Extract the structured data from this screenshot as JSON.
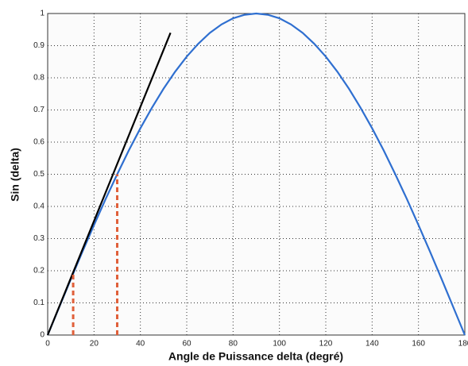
{
  "chart_data": {
    "type": "line",
    "xlabel": "Angle de Puissance delta (degré)",
    "ylabel": "Sin (delta)",
    "xlim": [
      0,
      180
    ],
    "xticks": [
      0,
      20,
      40,
      60,
      80,
      100,
      120,
      140,
      160,
      180
    ],
    "ylim": [
      0,
      1
    ],
    "yticks": [
      0,
      0.1,
      0.2,
      0.3,
      0.4,
      0.5,
      0.6,
      0.7,
      0.8,
      0.9,
      1
    ],
    "grid": true,
    "series": [
      {
        "color": "#2f6fd0",
        "style": "solid",
        "x": [
          0,
          5,
          10,
          15,
          20,
          25,
          30,
          35,
          40,
          45,
          50,
          55,
          60,
          65,
          70,
          75,
          80,
          85,
          90,
          95,
          100,
          105,
          110,
          115,
          120,
          125,
          130,
          135,
          140,
          145,
          150,
          155,
          160,
          165,
          170,
          175,
          180
        ],
        "values": [
          0,
          0.087,
          0.174,
          0.259,
          0.342,
          0.423,
          0.5,
          0.574,
          0.643,
          0.707,
          0.766,
          0.819,
          0.866,
          0.906,
          0.94,
          0.966,
          0.985,
          0.996,
          1,
          0.996,
          0.985,
          0.966,
          0.94,
          0.906,
          0.866,
          0.819,
          0.766,
          0.707,
          0.643,
          0.574,
          0.5,
          0.423,
          0.342,
          0.259,
          0.174,
          0.087,
          0
        ]
      },
      {
        "color": "#000000",
        "style": "solid",
        "x": [
          0,
          53
        ],
        "values": [
          0,
          0.94
        ]
      },
      {
        "color": "#e0603a",
        "style": "dashed",
        "x": [
          11,
          11
        ],
        "values": [
          0,
          0.19
        ]
      },
      {
        "color": "#e0603a",
        "style": "dashed",
        "x": [
          30,
          30
        ],
        "values": [
          0,
          0.5
        ]
      }
    ]
  }
}
